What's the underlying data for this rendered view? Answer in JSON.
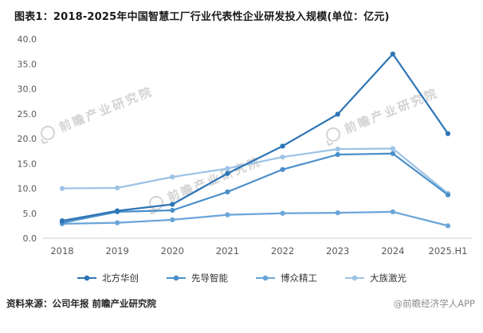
{
  "watermark": {
    "text": "前瞻产业研究院"
  },
  "footer": {
    "source": "资料来源：公司年报 前瞻产业研究院",
    "credit": "@前瞻经济学人APP"
  },
  "chart_data": {
    "type": "line",
    "title": "图表1：2018-2025年中国智慧工厂行业代表性企业研发投入规模(单位：亿元)",
    "unit": "亿元",
    "categories": [
      "2018",
      "2019",
      "2020",
      "2021",
      "2022",
      "2023",
      "2024",
      "2025.H1"
    ],
    "series": [
      {
        "name": "北方华创",
        "color": "#2E75B6",
        "values": [
          3.5,
          5.5,
          6.8,
          13.0,
          18.5,
          24.9,
          37.0,
          21.0
        ]
      },
      {
        "name": "先导智能",
        "color": "#4A8FC9",
        "values": [
          3.1,
          5.3,
          5.6,
          9.3,
          13.8,
          16.8,
          17.0,
          8.7
        ]
      },
      {
        "name": "博众精工",
        "color": "#6AA5D8",
        "values": [
          2.9,
          3.1,
          3.7,
          4.7,
          5.0,
          5.1,
          5.3,
          2.5
        ]
      },
      {
        "name": "大族激光",
        "color": "#9DC3E6",
        "values": [
          10.0,
          10.1,
          12.3,
          14.0,
          16.3,
          17.9,
          18.0,
          9.0
        ]
      }
    ],
    "xlabel": "",
    "ylabel": "",
    "ylim": [
      0,
      40
    ],
    "ytick_step": 5,
    "grid": false,
    "legend_position": "bottom"
  }
}
